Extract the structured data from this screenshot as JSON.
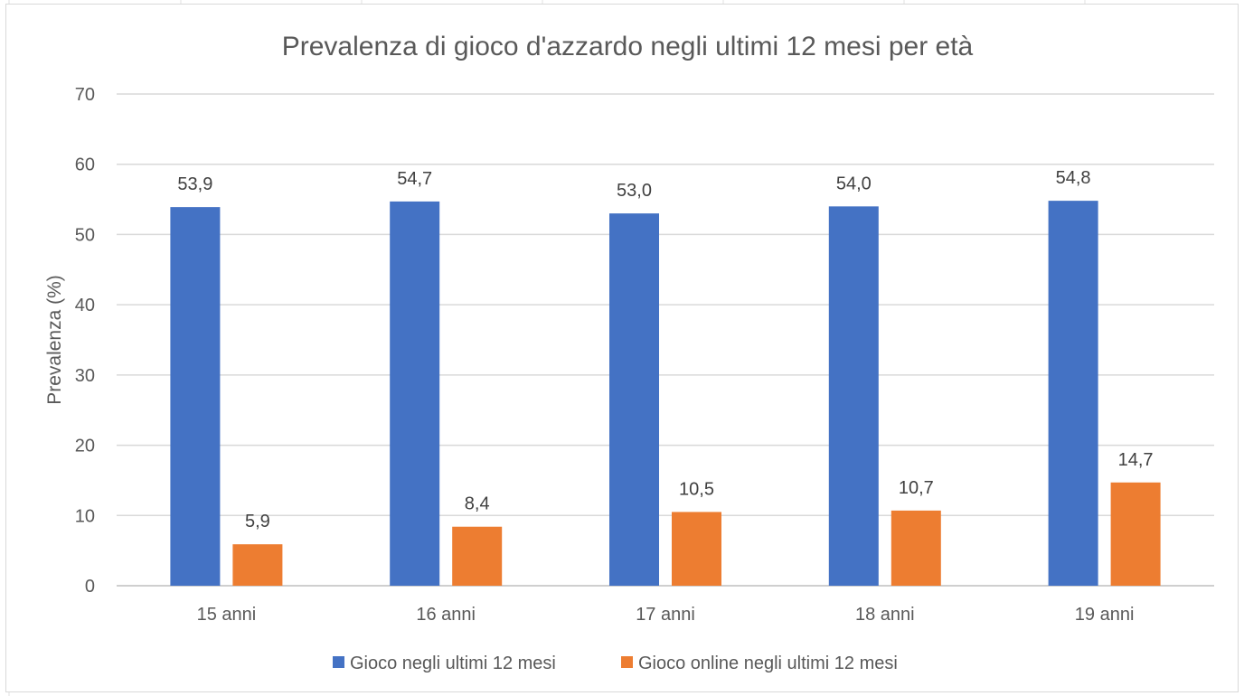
{
  "chart_data": {
    "type": "bar",
    "title": "Prevalenza di gioco d'azzardo negli ultimi 12 mesi per età",
    "xlabel": "",
    "ylabel": "Prevalenza (%)",
    "ylim": [
      0,
      70
    ],
    "yticks": [
      0,
      10,
      20,
      30,
      40,
      50,
      60,
      70
    ],
    "grid": true,
    "legend_position": "bottom",
    "categories": [
      "15 anni",
      "16 anni",
      "17 anni",
      "18 anni",
      "19 anni"
    ],
    "series": [
      {
        "name": "Gioco negli ultimi 12 mesi",
        "color": "#4472C4",
        "values": [
          53.9,
          54.7,
          53.0,
          54.0,
          54.8
        ],
        "labels": [
          "53,9",
          "54,7",
          "53,0",
          "54,0",
          "54,8"
        ]
      },
      {
        "name": "Gioco online negli ultimi 12 mesi",
        "color": "#ED7D31",
        "values": [
          5.9,
          8.4,
          10.5,
          10.7,
          14.7
        ],
        "labels": [
          "5,9",
          "8,4",
          "10,5",
          "10,7",
          "14,7"
        ]
      }
    ]
  }
}
